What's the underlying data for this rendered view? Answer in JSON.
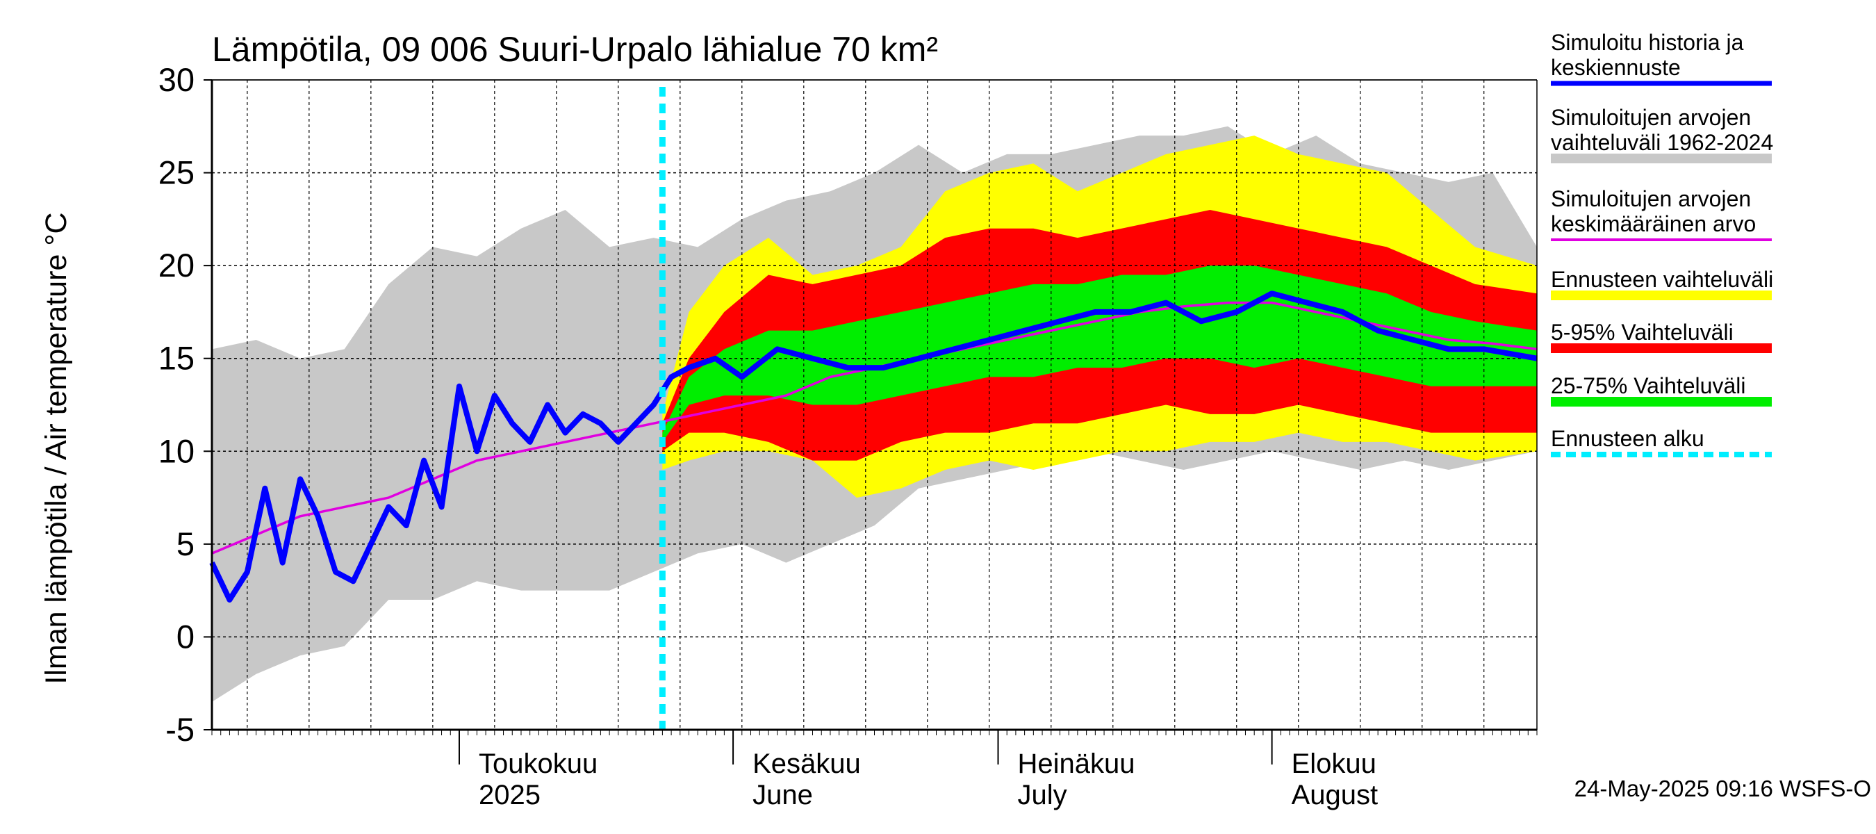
{
  "chart_data": {
    "type": "area",
    "title": "Lämpötila, 09 006 Suuri-Urpalo lähialue 70 km²",
    "ylabel": "Ilman lämpötila / Air temperature   °C",
    "ylim": [
      -5,
      30
    ],
    "yticks": [
      -5,
      0,
      5,
      10,
      15,
      20,
      25,
      30
    ],
    "xlim": [
      "2025-04-03",
      "2025-08-31"
    ],
    "grid": true,
    "legend_position": "right",
    "months": [
      {
        "label": "Toukokuu",
        "sublabel": "2025",
        "date": "2025-05-01"
      },
      {
        "label": "Kesäkuu",
        "sublabel": "June",
        "date": "2025-06-01"
      },
      {
        "label": "Heinäkuu",
        "sublabel": "July",
        "date": "2025-07-01"
      },
      {
        "label": "Elokuu",
        "sublabel": "August",
        "date": "2025-08-01"
      }
    ],
    "forecast_start": "2025-05-24",
    "timestamp": "24-May-2025 09:16 WSFS-O",
    "legend": [
      {
        "label": "Simuloitu historia ja keskiennuste",
        "lines": [
          "Simuloitu historia ja",
          "keskiennuste"
        ],
        "color": "#0000ff",
        "style": "line"
      },
      {
        "label": "Simuloitujen arvojen vaihteluväli 1962-2024",
        "lines": [
          "Simuloitujen arvojen",
          "vaihteluväli 1962-2024"
        ],
        "color": "#c8c8c8",
        "style": "band"
      },
      {
        "label": "Simuloitujen arvojen keskimääräinen arvo",
        "lines": [
          "Simuloitujen arvojen",
          "keskimääräinen arvo"
        ],
        "color": "#e000e0",
        "style": "thin"
      },
      {
        "label": "Ennusteen vaihteluväli",
        "lines": [
          "Ennusteen vaihteluväli"
        ],
        "color": "#ffff00",
        "style": "band"
      },
      {
        "label": "5-95% Vaihteluväli",
        "lines": [
          "5-95% Vaihteluväli"
        ],
        "color": "#ff0000",
        "style": "band"
      },
      {
        "label": "25-75% Vaihteluväli",
        "lines": [
          "25-75% Vaihteluväli"
        ],
        "color": "#00ee00",
        "style": "band"
      },
      {
        "label": "Ennusteen alku",
        "lines": [
          "Ennusteen alku"
        ],
        "color": "#00eeff",
        "style": "dash"
      }
    ],
    "series": [
      {
        "name": "Simuloitujen arvojen vaihteluväli 1962-2024",
        "color": "#c8c8c8",
        "x": [
          "2025-04-03",
          "2025-04-08",
          "2025-04-13",
          "2025-04-18",
          "2025-04-23",
          "2025-04-28",
          "2025-05-03",
          "2025-05-08",
          "2025-05-13",
          "2025-05-18",
          "2025-05-23",
          "2025-05-28",
          "2025-06-02",
          "2025-06-07",
          "2025-06-12",
          "2025-06-17",
          "2025-06-22",
          "2025-06-27",
          "2025-07-02",
          "2025-07-07",
          "2025-07-12",
          "2025-07-17",
          "2025-07-22",
          "2025-07-27",
          "2025-08-01",
          "2025-08-06",
          "2025-08-11",
          "2025-08-16",
          "2025-08-21",
          "2025-08-26",
          "2025-08-31"
        ],
        "upper": [
          15.5,
          16.0,
          15.0,
          15.5,
          19.0,
          21.0,
          20.5,
          22.0,
          23.0,
          21.0,
          21.5,
          21.0,
          22.5,
          23.5,
          24.0,
          25.0,
          26.5,
          25.0,
          26.0,
          26.0,
          26.5,
          27.0,
          27.0,
          27.5,
          26.0,
          27.0,
          25.5,
          25.0,
          24.5,
          25.0,
          21.0
        ],
        "lower": [
          -3.5,
          -2.0,
          -1.0,
          -0.5,
          2.0,
          2.0,
          3.0,
          2.5,
          2.5,
          2.5,
          3.5,
          4.5,
          5.0,
          4.0,
          5.0,
          6.0,
          8.0,
          8.5,
          9.0,
          9.5,
          10.0,
          9.5,
          9.0,
          9.5,
          10.0,
          9.5,
          9.0,
          9.5,
          9.0,
          9.5,
          10.0
        ]
      },
      {
        "name": "Ennusteen vaihteluväli",
        "color": "#ffff00",
        "x": [
          "2025-05-24",
          "2025-05-27",
          "2025-05-31",
          "2025-06-05",
          "2025-06-10",
          "2025-06-15",
          "2025-06-20",
          "2025-06-25",
          "2025-06-30",
          "2025-07-05",
          "2025-07-10",
          "2025-07-15",
          "2025-07-20",
          "2025-07-25",
          "2025-07-30",
          "2025-08-04",
          "2025-08-09",
          "2025-08-14",
          "2025-08-19",
          "2025-08-24",
          "2025-08-31"
        ],
        "upper": [
          12.0,
          17.5,
          20.0,
          21.5,
          19.5,
          20.0,
          21.0,
          24.0,
          25.0,
          25.5,
          24.0,
          25.0,
          26.0,
          26.5,
          27.0,
          26.0,
          25.5,
          25.0,
          23.0,
          21.0,
          20.0
        ],
        "lower": [
          9.0,
          9.5,
          10.0,
          10.0,
          9.5,
          7.5,
          8.0,
          9.0,
          9.5,
          9.0,
          9.5,
          10.0,
          10.0,
          10.5,
          10.5,
          11.0,
          10.5,
          10.5,
          10.0,
          9.5,
          10.0
        ]
      },
      {
        "name": "5-95% Vaihteluväli",
        "color": "#ff0000",
        "x": [
          "2025-05-24",
          "2025-05-27",
          "2025-05-31",
          "2025-06-05",
          "2025-06-10",
          "2025-06-15",
          "2025-06-20",
          "2025-06-25",
          "2025-06-30",
          "2025-07-05",
          "2025-07-10",
          "2025-07-15",
          "2025-07-20",
          "2025-07-25",
          "2025-07-30",
          "2025-08-04",
          "2025-08-09",
          "2025-08-14",
          "2025-08-19",
          "2025-08-24",
          "2025-08-31"
        ],
        "upper": [
          11.5,
          15.0,
          17.5,
          19.5,
          19.0,
          19.5,
          20.0,
          21.5,
          22.0,
          22.0,
          21.5,
          22.0,
          22.5,
          23.0,
          22.5,
          22.0,
          21.5,
          21.0,
          20.0,
          19.0,
          18.5
        ],
        "lower": [
          10.0,
          11.0,
          11.0,
          10.5,
          9.5,
          9.5,
          10.5,
          11.0,
          11.0,
          11.5,
          11.5,
          12.0,
          12.5,
          12.0,
          12.0,
          12.5,
          12.0,
          11.5,
          11.0,
          11.0,
          11.0
        ]
      },
      {
        "name": "25-75% Vaihteluväli",
        "color": "#00ee00",
        "x": [
          "2025-05-24",
          "2025-05-27",
          "2025-05-31",
          "2025-06-05",
          "2025-06-10",
          "2025-06-15",
          "2025-06-20",
          "2025-06-25",
          "2025-06-30",
          "2025-07-05",
          "2025-07-10",
          "2025-07-15",
          "2025-07-20",
          "2025-07-25",
          "2025-07-30",
          "2025-08-04",
          "2025-08-09",
          "2025-08-14",
          "2025-08-19",
          "2025-08-24",
          "2025-08-31"
        ],
        "upper": [
          11.0,
          14.0,
          15.5,
          16.5,
          16.5,
          17.0,
          17.5,
          18.0,
          18.5,
          19.0,
          19.0,
          19.5,
          19.5,
          20.0,
          20.0,
          19.5,
          19.0,
          18.5,
          17.5,
          17.0,
          16.5
        ],
        "lower": [
          10.5,
          12.5,
          13.0,
          13.0,
          12.5,
          12.5,
          13.0,
          13.5,
          14.0,
          14.0,
          14.5,
          14.5,
          15.0,
          15.0,
          14.5,
          15.0,
          14.5,
          14.0,
          13.5,
          13.5,
          13.5
        ]
      },
      {
        "name": "Simuloitujen arvojen keskimääräinen arvo",
        "color": "#e000e0",
        "x": [
          "2025-04-03",
          "2025-04-08",
          "2025-04-13",
          "2025-04-18",
          "2025-04-23",
          "2025-04-28",
          "2025-05-03",
          "2025-05-08",
          "2025-05-13",
          "2025-05-18",
          "2025-05-23",
          "2025-05-28",
          "2025-06-02",
          "2025-06-07",
          "2025-06-12",
          "2025-06-17",
          "2025-06-22",
          "2025-06-27",
          "2025-07-02",
          "2025-07-07",
          "2025-07-12",
          "2025-07-17",
          "2025-07-22",
          "2025-07-27",
          "2025-08-01",
          "2025-08-06",
          "2025-08-11",
          "2025-08-16",
          "2025-08-21",
          "2025-08-26",
          "2025-08-31"
        ],
        "values": [
          4.5,
          5.5,
          6.5,
          7.0,
          7.5,
          8.5,
          9.5,
          10.0,
          10.5,
          11.0,
          11.5,
          12.0,
          12.5,
          13.0,
          14.0,
          14.5,
          15.0,
          15.5,
          16.0,
          16.5,
          17.0,
          17.5,
          17.8,
          18.0,
          18.0,
          17.5,
          17.0,
          16.5,
          16.0,
          15.8,
          15.5
        ]
      },
      {
        "name": "Simuloitu historia ja keskiennuste",
        "color": "#0000ff",
        "x": [
          "2025-04-03",
          "2025-04-05",
          "2025-04-07",
          "2025-04-09",
          "2025-04-11",
          "2025-04-13",
          "2025-04-15",
          "2025-04-17",
          "2025-04-19",
          "2025-04-21",
          "2025-04-23",
          "2025-04-25",
          "2025-04-27",
          "2025-04-29",
          "2025-05-01",
          "2025-05-03",
          "2025-05-05",
          "2025-05-07",
          "2025-05-09",
          "2025-05-11",
          "2025-05-13",
          "2025-05-15",
          "2025-05-17",
          "2025-05-19",
          "2025-05-21",
          "2025-05-23",
          "2025-05-25",
          "2025-05-27",
          "2025-05-30",
          "2025-06-02",
          "2025-06-06",
          "2025-06-10",
          "2025-06-14",
          "2025-06-18",
          "2025-06-22",
          "2025-06-26",
          "2025-06-30",
          "2025-07-04",
          "2025-07-08",
          "2025-07-12",
          "2025-07-16",
          "2025-07-20",
          "2025-07-24",
          "2025-07-28",
          "2025-08-01",
          "2025-08-05",
          "2025-08-09",
          "2025-08-13",
          "2025-08-17",
          "2025-08-21",
          "2025-08-25",
          "2025-08-31"
        ],
        "values": [
          4.0,
          2.0,
          3.5,
          8.0,
          4.0,
          8.5,
          6.5,
          3.5,
          3.0,
          5.0,
          7.0,
          6.0,
          9.5,
          7.0,
          13.5,
          10.0,
          13.0,
          11.5,
          10.5,
          12.5,
          11.0,
          12.0,
          11.5,
          10.5,
          11.5,
          12.5,
          14.0,
          14.5,
          15.0,
          14.0,
          15.5,
          15.0,
          14.5,
          14.5,
          15.0,
          15.5,
          16.0,
          16.5,
          17.0,
          17.5,
          17.5,
          18.0,
          17.0,
          17.5,
          18.5,
          18.0,
          17.5,
          16.5,
          16.0,
          15.5,
          15.5,
          15.0
        ]
      }
    ]
  }
}
